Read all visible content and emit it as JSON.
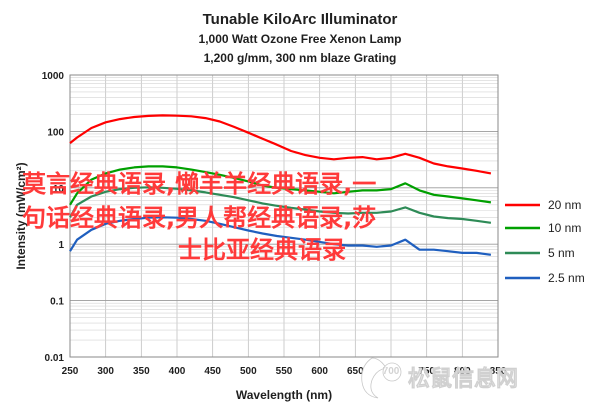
{
  "chart_data": {
    "type": "line",
    "title": "Tunable KiloArc Illuminator",
    "subtitle_1": "1,000 Watt Ozone Free Xenon Lamp",
    "subtitle_2": "1,200 g/mm, 300 nm blaze Grating",
    "xlabel": "Wavelength (nm)",
    "ylabel": "Intensity (mW/cm²)",
    "xlim": [
      250,
      850
    ],
    "ylim": [
      0.01,
      1000
    ],
    "y_scale": "log",
    "grid": true,
    "x_ticks": [
      "250",
      "300",
      "350",
      "400",
      "450",
      "500",
      "550",
      "600",
      "650",
      "700",
      "750",
      "800",
      "850"
    ],
    "y_ticks": [
      "0.01",
      "0.1",
      "1",
      "10",
      "100",
      "1000"
    ],
    "legend_position": "right",
    "series": [
      {
        "name": "20 nm",
        "color": "#ff0000",
        "x": [
          250,
          260,
          280,
          300,
          320,
          340,
          360,
          380,
          400,
          420,
          440,
          460,
          480,
          500,
          520,
          540,
          560,
          580,
          600,
          620,
          640,
          660,
          680,
          700,
          720,
          740,
          760,
          780,
          800,
          820,
          840
        ],
        "y": [
          62,
          78,
          115,
          145,
          165,
          180,
          188,
          192,
          190,
          185,
          172,
          150,
          120,
          95,
          74,
          58,
          45,
          38,
          34,
          32,
          34,
          35,
          32,
          34,
          40,
          34,
          27,
          24,
          22,
          20,
          18
        ]
      },
      {
        "name": "10 nm",
        "color": "#00a000",
        "x": [
          250,
          260,
          280,
          300,
          320,
          340,
          360,
          380,
          400,
          420,
          440,
          460,
          480,
          500,
          520,
          540,
          560,
          580,
          600,
          620,
          640,
          660,
          680,
          700,
          720,
          740,
          760,
          780,
          800,
          820,
          840
        ],
        "y": [
          5,
          8,
          14,
          18,
          21,
          23,
          24,
          24,
          23,
          21,
          19,
          17,
          15,
          13,
          11,
          10,
          9.5,
          9,
          8.5,
          8,
          8.5,
          9,
          9,
          9.5,
          12,
          9,
          7.5,
          7,
          6.5,
          6,
          5.5
        ]
      },
      {
        "name": "5 nm",
        "color": "#2e8b57",
        "x": [
          250,
          260,
          280,
          300,
          320,
          340,
          360,
          380,
          400,
          420,
          440,
          460,
          480,
          500,
          520,
          540,
          560,
          580,
          600,
          620,
          640,
          660,
          680,
          700,
          720,
          740,
          760,
          780,
          800,
          820,
          840
        ],
        "y": [
          3,
          5,
          7,
          8.5,
          9.5,
          10,
          10.2,
          10,
          9.6,
          9,
          8.3,
          7.5,
          6.8,
          6,
          5.3,
          4.8,
          4.4,
          4.1,
          3.8,
          3.6,
          3.5,
          3.6,
          3.6,
          3.8,
          4.5,
          3.6,
          3.1,
          2.9,
          2.8,
          2.6,
          2.4
        ]
      },
      {
        "name": "2.5 nm",
        "color": "#1f5fbf",
        "x": [
          250,
          260,
          280,
          300,
          320,
          340,
          360,
          380,
          400,
          420,
          440,
          460,
          480,
          500,
          520,
          540,
          560,
          580,
          600,
          620,
          640,
          660,
          680,
          700,
          720,
          740,
          760,
          780,
          800,
          820,
          840
        ],
        "y": [
          0.75,
          1.2,
          1.8,
          2.3,
          2.6,
          2.8,
          2.95,
          3.0,
          2.95,
          2.8,
          2.6,
          2.3,
          2.0,
          1.75,
          1.55,
          1.4,
          1.3,
          1.2,
          1.1,
          1.0,
          0.95,
          0.95,
          0.9,
          0.95,
          1.2,
          0.8,
          0.8,
          0.75,
          0.7,
          0.7,
          0.65
        ]
      }
    ]
  },
  "overlay": {
    "line_1": "莫言经典语录,懒羊羊经典语录,一",
    "line_2": "句话经典语录,男人帮经典语录,莎",
    "line_3": "士比亚经典语录",
    "logo": "松鼠信息网"
  }
}
